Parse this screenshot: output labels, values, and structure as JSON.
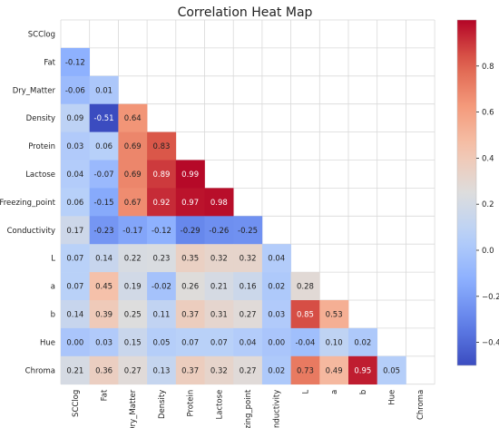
{
  "chart_data": {
    "type": "heatmap",
    "title": "Correlation Heat Map",
    "xlabel": "",
    "ylabel": "",
    "mask": "upper-triangle-including-diagonal",
    "colormap": "coolwarm",
    "categories": [
      "SCClog",
      "Fat",
      "Dry_Matter",
      "Density",
      "Protein",
      "Lactose",
      "Freezing_point",
      "Conductivity",
      "L",
      "a",
      "b",
      "Hue",
      "Chroma"
    ],
    "values": [
      [],
      [
        -0.12
      ],
      [
        -0.06,
        0.01
      ],
      [
        0.09,
        -0.51,
        0.64
      ],
      [
        0.03,
        0.06,
        0.69,
        0.83
      ],
      [
        0.04,
        -0.07,
        0.69,
        0.89,
        0.99
      ],
      [
        0.06,
        -0.15,
        0.67,
        0.92,
        0.97,
        0.98
      ],
      [
        0.17,
        -0.23,
        -0.17,
        -0.12,
        -0.29,
        -0.26,
        -0.25
      ],
      [
        0.07,
        0.14,
        0.22,
        0.23,
        0.35,
        0.32,
        0.32,
        0.04
      ],
      [
        0.07,
        0.45,
        0.19,
        -0.02,
        0.26,
        0.21,
        0.16,
        0.02,
        0.28
      ],
      [
        0.14,
        0.39,
        0.25,
        0.11,
        0.37,
        0.31,
        0.27,
        0.03,
        0.85,
        0.53
      ],
      [
        0.0,
        0.03,
        0.15,
        0.05,
        0.07,
        0.07,
        0.04,
        0.0,
        -0.04,
        0.1,
        0.02
      ],
      [
        0.21,
        0.36,
        0.27,
        0.13,
        0.37,
        0.32,
        0.27,
        0.02,
        0.73,
        0.49,
        0.95,
        0.05
      ]
    ],
    "colorbar": {
      "min": -0.5,
      "max": 1.0,
      "ticks": [
        -0.4,
        -0.2,
        0.0,
        0.2,
        0.4,
        0.6,
        0.8
      ],
      "tick_labels": [
        "−0.4",
        "−0.2",
        "0.0",
        "0.2",
        "0.4",
        "0.6",
        "0.8"
      ]
    },
    "grid": true,
    "legend": "colorbar-right"
  }
}
